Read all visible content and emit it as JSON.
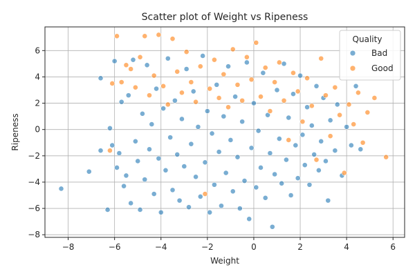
{
  "chart_data": {
    "type": "scatter",
    "title": "Scatter plot of Weight vs Ripeness",
    "xlabel": "Weight",
    "ylabel": "Ripeness",
    "xlim": [
      -9.0,
      6.5
    ],
    "ylim": [
      -8.2,
      7.8
    ],
    "xticks": [
      -8,
      -6,
      -4,
      -2,
      0,
      2,
      4,
      6
    ],
    "yticks": [
      -8,
      -6,
      -4,
      -2,
      0,
      2,
      4,
      6
    ],
    "grid": true,
    "legend": {
      "title": "Quality",
      "position": "top-right"
    },
    "series": [
      {
        "name": "Bad",
        "color": "#1f77b4",
        "points": [
          [
            -8.3,
            -4.5
          ],
          [
            -7.1,
            -3.2
          ],
          [
            -6.6,
            -1.6
          ],
          [
            -6.6,
            3.9
          ],
          [
            -6.3,
            -6.1
          ],
          [
            -6.2,
            0.1
          ],
          [
            -6.1,
            -1.2
          ],
          [
            -6.0,
            5.2
          ],
          [
            -5.9,
            -2.9
          ],
          [
            -5.8,
            -1.8
          ],
          [
            -5.7,
            2.1
          ],
          [
            -5.6,
            -4.3
          ],
          [
            -5.5,
            -3.5
          ],
          [
            -5.4,
            2.6
          ],
          [
            -5.3,
            -5.6
          ],
          [
            -5.2,
            5.3
          ],
          [
            -5.1,
            -0.9
          ],
          [
            -5.0,
            -2.4
          ],
          [
            -4.9,
            -6.1
          ],
          [
            -4.8,
            1.2
          ],
          [
            -4.7,
            -3.8
          ],
          [
            -4.6,
            4.9
          ],
          [
            -4.5,
            -1.5
          ],
          [
            -4.4,
            0.4
          ],
          [
            -4.3,
            -4.9
          ],
          [
            -4.2,
            3.1
          ],
          [
            -4.1,
            -2.2
          ],
          [
            -4.0,
            -6.3
          ],
          [
            -3.9,
            1.6
          ],
          [
            -3.8,
            -3.1
          ],
          [
            -3.7,
            5.4
          ],
          [
            -3.6,
            -0.6
          ],
          [
            -3.5,
            -4.6
          ],
          [
            -3.4,
            2.2
          ],
          [
            -3.3,
            -1.9
          ],
          [
            -3.2,
            -5.4
          ],
          [
            -3.1,
            0.8
          ],
          [
            -3.0,
            -2.8
          ],
          [
            -2.9,
            4.6
          ],
          [
            -2.8,
            -5.9
          ],
          [
            -2.7,
            -1.1
          ],
          [
            -2.6,
            2.9
          ],
          [
            -2.5,
            -3.6
          ],
          [
            -2.4,
            0.2
          ],
          [
            -2.3,
            -5.1
          ],
          [
            -2.2,
            5.6
          ],
          [
            -2.1,
            -2.5
          ],
          [
            -2.0,
            1.4
          ],
          [
            -1.9,
            -6.3
          ],
          [
            -1.8,
            -0.3
          ],
          [
            -1.7,
            -4.2
          ],
          [
            -1.6,
            3.4
          ],
          [
            -1.5,
            -1.7
          ],
          [
            -1.4,
            -5.8
          ],
          [
            -1.3,
            1.0
          ],
          [
            -1.2,
            -3.3
          ],
          [
            -1.1,
            4.8
          ],
          [
            -1.0,
            -0.8
          ],
          [
            -0.9,
            -4.7
          ],
          [
            -0.8,
            2.5
          ],
          [
            -0.7,
            -2.1
          ],
          [
            -0.6,
            -6.0
          ],
          [
            -0.5,
            0.6
          ],
          [
            -0.4,
            -3.9
          ],
          [
            -0.3,
            5.1
          ],
          [
            -0.2,
            -6.8
          ],
          [
            -0.1,
            -1.4
          ],
          [
            0.0,
            2.0
          ],
          [
            0.1,
            -4.4
          ],
          [
            0.2,
            -0.1
          ],
          [
            0.3,
            -2.9
          ],
          [
            0.4,
            4.3
          ],
          [
            0.5,
            -5.2
          ],
          [
            0.6,
            1.1
          ],
          [
            0.7,
            -1.8
          ],
          [
            0.8,
            -7.4
          ],
          [
            0.9,
            -3.4
          ],
          [
            1.0,
            3.0
          ],
          [
            1.1,
            -0.7
          ],
          [
            1.2,
            -4.1
          ],
          [
            1.3,
            5.0
          ],
          [
            1.4,
            -2.3
          ],
          [
            1.5,
            0.9
          ],
          [
            1.6,
            -5.0
          ],
          [
            1.7,
            2.7
          ],
          [
            1.8,
            -1.2
          ],
          [
            1.9,
            -3.7
          ],
          [
            2.0,
            4.1
          ],
          [
            2.1,
            -0.4
          ],
          [
            2.2,
            -2.7
          ],
          [
            2.3,
            1.7
          ],
          [
            2.4,
            -4.2
          ],
          [
            2.5,
            0.3
          ],
          [
            2.6,
            -1.9
          ],
          [
            2.7,
            3.3
          ],
          [
            2.8,
            -3.1
          ],
          [
            2.9,
            -0.9
          ],
          [
            3.0,
            2.4
          ],
          [
            3.1,
            -2.4
          ],
          [
            3.2,
            -5.4
          ],
          [
            3.3,
            0.7
          ],
          [
            3.5,
            -1.6
          ],
          [
            3.6,
            1.9
          ],
          [
            3.8,
            -3.5
          ],
          [
            4.0,
            0.2
          ],
          [
            4.2,
            -1.2
          ],
          [
            4.4,
            3.3
          ],
          [
            4.6,
            -1.5
          ]
        ]
      },
      {
        "name": "Good",
        "color": "#ff7f0e",
        "points": [
          [
            -6.2,
            -1.6
          ],
          [
            -6.1,
            3.5
          ],
          [
            -5.9,
            7.1
          ],
          [
            -5.7,
            3.6
          ],
          [
            -5.5,
            4.9
          ],
          [
            -5.3,
            4.6
          ],
          [
            -5.1,
            3.2
          ],
          [
            -4.9,
            5.5
          ],
          [
            -4.7,
            7.1
          ],
          [
            -4.5,
            2.6
          ],
          [
            -4.3,
            4.1
          ],
          [
            -4.1,
            7.2
          ],
          [
            -3.9,
            3.3
          ],
          [
            -3.7,
            1.9
          ],
          [
            -3.5,
            6.9
          ],
          [
            -3.3,
            4.4
          ],
          [
            -3.1,
            2.8
          ],
          [
            -2.9,
            5.9
          ],
          [
            -2.7,
            3.6
          ],
          [
            -2.5,
            2.1
          ],
          [
            -2.3,
            4.8
          ],
          [
            -2.1,
            -4.9
          ],
          [
            -1.9,
            3.1
          ],
          [
            -1.7,
            5.3
          ],
          [
            -1.5,
            2.4
          ],
          [
            -1.3,
            4.2
          ],
          [
            -1.1,
            1.7
          ],
          [
            -0.9,
            6.1
          ],
          [
            -0.7,
            3.4
          ],
          [
            -0.5,
            2.2
          ],
          [
            -0.3,
            5.5
          ],
          [
            -0.1,
            3.8
          ],
          [
            0.1,
            6.6
          ],
          [
            0.3,
            2.5
          ],
          [
            0.5,
            4.7
          ],
          [
            0.7,
            1.4
          ],
          [
            0.9,
            3.6
          ],
          [
            1.1,
            5.1
          ],
          [
            1.3,
            2.2
          ],
          [
            1.5,
            -0.8
          ],
          [
            1.7,
            4.3
          ],
          [
            1.9,
            2.9
          ],
          [
            2.1,
            0.6
          ],
          [
            2.3,
            3.9
          ],
          [
            2.5,
            1.8
          ],
          [
            2.7,
            -2.3
          ],
          [
            2.9,
            5.4
          ],
          [
            3.1,
            2.6
          ],
          [
            3.3,
            -0.5
          ],
          [
            3.5,
            3.2
          ],
          [
            3.7,
            1.1
          ],
          [
            3.9,
            -3.3
          ],
          [
            4.1,
            1.9
          ],
          [
            4.3,
            0.4
          ],
          [
            4.5,
            2.8
          ],
          [
            4.7,
            -1.0
          ],
          [
            4.9,
            1.3
          ],
          [
            5.2,
            2.4
          ],
          [
            5.7,
            -2.1
          ]
        ]
      }
    ]
  }
}
